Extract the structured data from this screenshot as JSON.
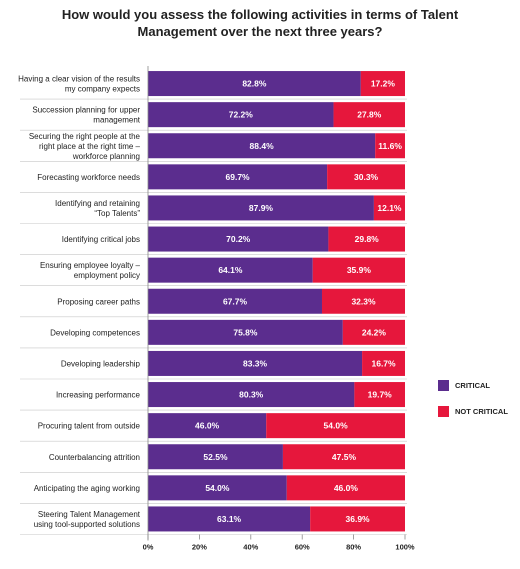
{
  "chart_data": {
    "type": "bar",
    "orientation": "horizontal",
    "stacked": true,
    "title_lines": [
      "How would you assess the following activities in terms of Talent",
      "Management over the next three years?"
    ],
    "categories": [
      [
        "Having a clear vision of the results",
        "my company expects"
      ],
      [
        "Succession planning for upper",
        "management"
      ],
      [
        "Securing the right people at the",
        "right place at the right time –",
        "workforce planning"
      ],
      [
        "Forecasting workforce needs"
      ],
      [
        "Identifying and retaining",
        "“Top Talents”"
      ],
      [
        "Identifying critical jobs"
      ],
      [
        "Ensuring employee loyalty –",
        "employment policy"
      ],
      [
        "Proposing career paths"
      ],
      [
        "Developing competences"
      ],
      [
        "Developing leadership"
      ],
      [
        "Increasing performance"
      ],
      [
        "Procuring talent from outside"
      ],
      [
        "Counterbalancing attrition"
      ],
      [
        "Anticipating the aging working"
      ],
      [
        "Steering Talent Management",
        "using tool-supported solutions"
      ]
    ],
    "series": [
      {
        "name": "CRITICAL",
        "color": "#5b2d8e",
        "values": [
          82.8,
          72.2,
          88.4,
          69.7,
          87.9,
          70.2,
          64.1,
          67.7,
          75.8,
          83.3,
          80.3,
          46.0,
          52.5,
          54.0,
          63.1
        ],
        "labels": [
          "82.8%",
          "72.2%",
          "88.4%",
          "69.7%",
          "87.9%",
          "70.2%",
          "64.1%",
          "67.7%",
          "75.8%",
          "83.3%",
          "80.3%",
          "46.0%",
          "52.5%",
          "54.0%",
          "63.1%"
        ]
      },
      {
        "name": "NOT CRITICAL",
        "color": "#e6173c",
        "values": [
          17.2,
          27.8,
          11.6,
          30.3,
          12.1,
          29.8,
          35.9,
          32.3,
          24.2,
          16.7,
          19.7,
          54.0,
          47.5,
          46.0,
          36.9
        ],
        "labels": [
          "17.2%",
          "27.8%",
          "11.6%",
          "30.3%",
          "12.1%",
          "29.8%",
          "35.9%",
          "32.3%",
          "24.2%",
          "16.7%",
          "19.7%",
          "54.0%",
          "47.5%",
          "46.0%",
          "36.9%"
        ]
      }
    ],
    "x_ticks": [
      "0%",
      "20%",
      "40%",
      "60%",
      "80%",
      "100%"
    ],
    "xlim": [
      0,
      100
    ],
    "legend_position": "right",
    "grid": false
  }
}
